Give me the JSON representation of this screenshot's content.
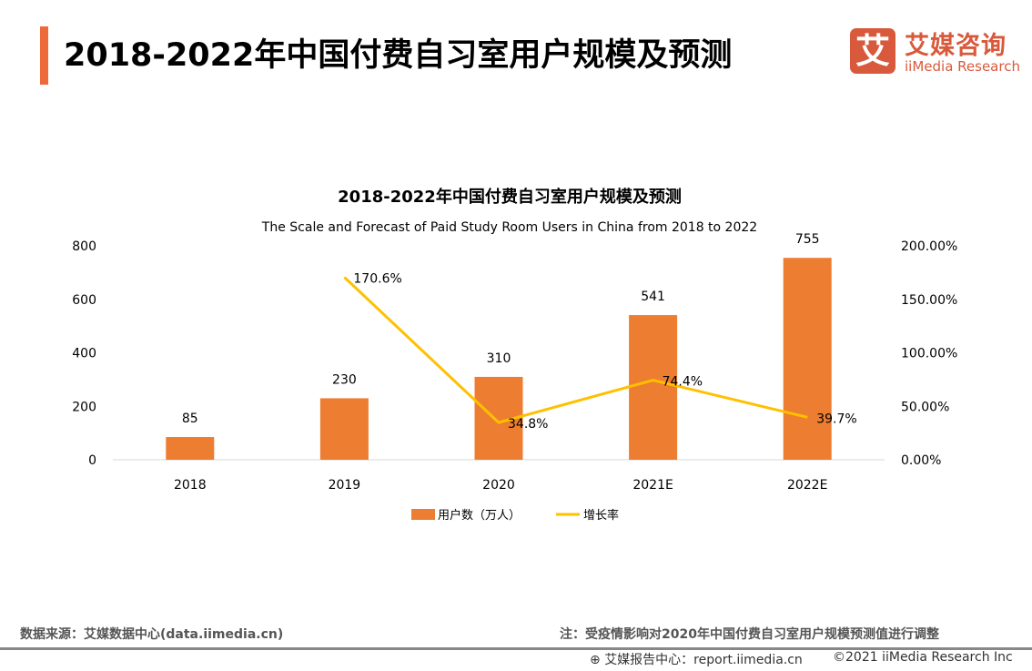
{
  "header": {
    "title": "2018-2022年中国付费自习室用户规模及预测",
    "logo_mark": "艾",
    "logo_cn": "艾媒咨询",
    "logo_en": "iiMedia Research",
    "accent_color": "#ee6a3a"
  },
  "chart_data": {
    "type": "bar+line",
    "title": "2018-2022年中国付费自习室用户规模及预测",
    "subtitle": "The Scale and Forecast of Paid Study Room Users in China from 2018 to 2022",
    "categories": [
      "2018",
      "2019",
      "2020",
      "2021E",
      "2022E"
    ],
    "series": [
      {
        "name": "用户数（万人）",
        "type": "bar",
        "axis": "left",
        "color": "#ed7d31",
        "values": [
          85,
          230,
          310,
          541,
          755
        ],
        "labels": [
          "85",
          "230",
          "310",
          "541",
          "755"
        ]
      },
      {
        "name": "增长率",
        "type": "line",
        "axis": "right",
        "color": "#ffc000",
        "values": [
          null,
          170.6,
          34.8,
          74.4,
          39.7
        ],
        "labels": [
          "",
          "170.6%",
          "34.8%",
          "74.4%",
          "39.7%"
        ]
      }
    ],
    "left_axis": {
      "ylim": [
        0,
        800
      ],
      "ticks": [
        "0",
        "200",
        "400",
        "600",
        "800"
      ]
    },
    "right_axis": {
      "ylim": [
        0,
        200
      ],
      "ticks": [
        "0.00%",
        "50.00%",
        "100.00%",
        "150.00%",
        "200.00%"
      ]
    },
    "grid": false,
    "legend": "bottom"
  },
  "footer": {
    "source": "数据来源：艾媒数据中心(data.iimedia.cn)",
    "note": "注：受疫情影响对2020年中国付费自习室用户规模预测值进行调整",
    "report": "艾媒报告中心：report.iimedia.cn",
    "copyright": "©2021  iiMedia Research  Inc"
  }
}
